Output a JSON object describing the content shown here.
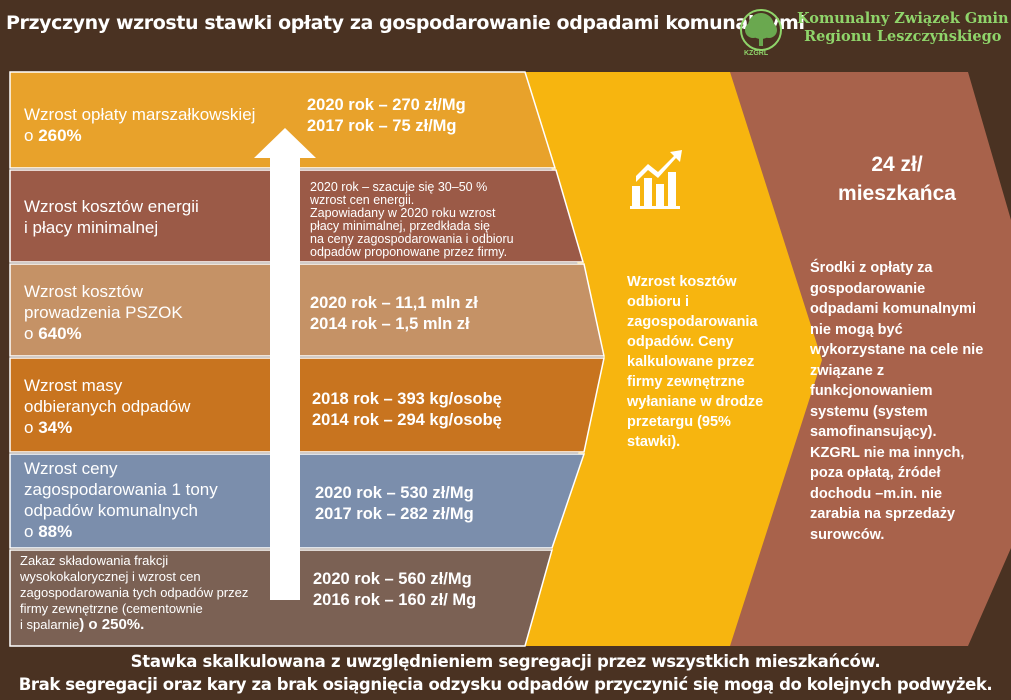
{
  "header": {
    "title": "Przyczyny wzrostu stawki opłaty za gospodarowanie odpadami komunalnymi",
    "org_line1": "Komunalny Związek Gmin",
    "org_line2": "Regionu Leszczyńskiego",
    "logo_text": "KZGRL"
  },
  "colors": {
    "background": "#4a3222",
    "row1": "#e8a22b",
    "row2": "#9b5a47",
    "row3": "#c59266",
    "row4": "#c8741f",
    "row5": "#7b8eac",
    "row6": "#7b6154",
    "middle": "#f7b50f",
    "right": "#a8624b"
  },
  "rows": [
    {
      "label": "Wzrost opłaty marszałkowskiej",
      "label_prefix": "o ",
      "label_value": "260%",
      "stat1": "2020 rok – 270 zł/Mg",
      "stat2": "2017 rok – 75 zł/Mg"
    },
    {
      "label1": "Wzrost kosztów energii",
      "label2": "i płacy minimalnej",
      "note1": "2020 rok – szacuje się 30–50 %",
      "note2": "wzrost cen energii.",
      "note3": "Zapowiadany w 2020 roku wzrost",
      "note4": "płacy minimalnej, przedkłada się",
      "note5": "na  ceny zagospodarowania i odbioru",
      "note6": "odpadów proponowane przez firmy."
    },
    {
      "label1": "Wzrost  kosztów",
      "label2": "prowadzenia PSZOK",
      "label_prefix": "o ",
      "label_value": "640%",
      "stat1": "2020 rok – 11,1 mln zł",
      "stat2": "2014 rok – 1,5 mln zł"
    },
    {
      "label1": "Wzrost masy",
      "label2": "odbieranych odpadów",
      "label_prefix": "o ",
      "label_value": "34%",
      "stat1": "2018 rok – 393 kg/osobę",
      "stat2": "2014 rok – 294 kg/osobę"
    },
    {
      "label1": "Wzrost ceny",
      "label2": "zagospodarowania 1 tony",
      "label3": "odpadów komunalnych",
      "label_prefix": "o ",
      "label_value": "88%",
      "stat1": "2020 rok – 530 zł/Mg",
      "stat2": "2017 rok – 282 zł/Mg"
    },
    {
      "label1": "Zakaz składowania frakcji",
      "label2": "wysokokalorycznej i wzrost cen",
      "label3": "zagospodarowania tych odpadów przez",
      "label4": "firmy zewnętrzne (cementownie",
      "label5_a": "i spalarnie",
      "label5_b": ") o 250%.",
      "stat1": "2020 rok –  560 zł/Mg",
      "stat2": "2016 rok – 160 zł/ Mg"
    }
  ],
  "middle": {
    "icon": "growth-chart-icon",
    "text": "Wzrost kosztów odbioru i zagospodarowania odpadów. Ceny kalkulowane  przez firmy zewnętrzne wyłaniane w drodze przetargu (95% stawki)."
  },
  "right": {
    "title1": "24 zł/",
    "title2": "mieszkańca",
    "text": "Środki z opłaty za gospodarowanie odpadami komunalnymi nie mogą być wykorzystane na cele nie związane z funkcjonowaniem systemu (system samofinansujący). KZGRL nie ma innych, poza opłatą, źródeł dochodu –m.in. nie zarabia na sprzedaży surowców."
  },
  "footer": {
    "line1": "Stawka skalkulowana z uwzględnieniem segregacji przez wszystkich mieszkańców.",
    "line2": "Brak segregacji oraz kary za brak osiągnięcia odzysku odpadów przyczynić się mogą do kolejnych podwyżek."
  }
}
